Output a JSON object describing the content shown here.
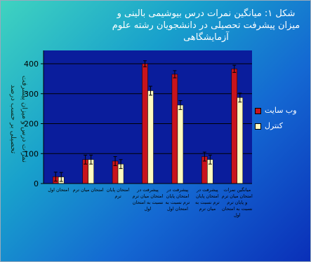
{
  "chart_data": {
    "type": "bar",
    "title": "شکل ۱: میانگین نمرات درس بیوشیمی بالینی و میزان پیشرفت تحصیلی در دانشجویان رشته علوم آزمایشگاهی",
    "ylabel": "نمرات درس و میزان پیشرفت تحصیلی بر حسب درصد",
    "xlabel": "",
    "ylim": [
      0,
      400
    ],
    "yticks": [
      0,
      100,
      200,
      300,
      400
    ],
    "grid": true,
    "legend_position": "right",
    "categories": [
      "امتحان اول",
      "امتحان میان ترم",
      "امتحان پایان ترم",
      "پیشرفت در امتحان میان ترم نسبت به امتحان اول",
      "پیشرفت در امتحان پایان ترم نسبت به امتحان اول",
      "پیشرفت در امتحان پایان ترم نسبت به میان ترم",
      "میانگین نمرات امتحان میان ترم و پایان ترم نسبت به امتحان اول"
    ],
    "series": [
      {
        "name": "وب سایت",
        "color": "#c8141c",
        "values": [
          23,
          80,
          75,
          400,
          365,
          90,
          383
        ],
        "errors": [
          15,
          15,
          15,
          10,
          12,
          15,
          12
        ]
      },
      {
        "name": "کنترل",
        "color": "#fffbc0",
        "values": [
          22,
          80,
          65,
          310,
          262,
          80,
          287
        ],
        "errors": [
          15,
          15,
          15,
          15,
          15,
          15,
          15
        ]
      }
    ]
  }
}
